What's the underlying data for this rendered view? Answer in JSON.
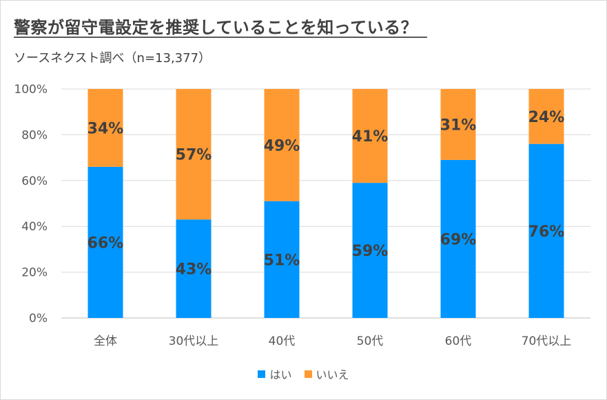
{
  "chart_data": {
    "type": "bar",
    "stacked": true,
    "title": "警察が留守電設定を推奨していることを知っている？",
    "subtitle": "ソースネクスト調べ（n=13,377）",
    "categories": [
      "全体",
      "30代以上",
      "40代",
      "50代",
      "60代",
      "70代以上"
    ],
    "series": [
      {
        "name": "はい",
        "color": "#0096ff",
        "values": [
          66,
          43,
          51,
          59,
          69,
          76
        ],
        "labels": [
          "66%",
          "43%",
          "51%",
          "59%",
          "69%",
          "76%"
        ]
      },
      {
        "name": "いいえ",
        "color": "#ff9a33",
        "values": [
          34,
          57,
          49,
          41,
          31,
          24
        ],
        "labels": [
          "34%",
          "57%",
          "49%",
          "41%",
          "31%",
          "24%"
        ]
      }
    ],
    "y_ticks": [
      "0%",
      "20%",
      "40%",
      "60%",
      "80%",
      "100%"
    ],
    "ylim": [
      0,
      100
    ],
    "grid": true,
    "legend_position": "bottom"
  }
}
